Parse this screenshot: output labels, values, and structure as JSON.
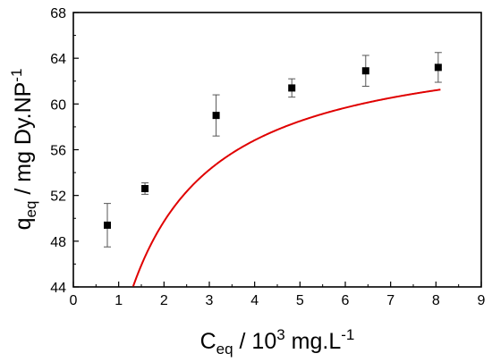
{
  "chart_data": {
    "type": "scatter",
    "xlabel": {
      "base": "C",
      "sub": "eq",
      "text": " / 10",
      "sup": "3",
      "text2": " mg.L",
      "sup2": "-1"
    },
    "ylabel": {
      "base": "q",
      "sub": "eq",
      "text": " / mg Dy.NP",
      "sup": "-1"
    },
    "xlim": [
      0,
      9
    ],
    "ylim": [
      44,
      68
    ],
    "x_ticks": [
      "0",
      "1",
      "2",
      "3",
      "4",
      "5",
      "6",
      "7",
      "8",
      "9"
    ],
    "y_ticks": [
      "44",
      "48",
      "52",
      "56",
      "60",
      "64",
      "68"
    ],
    "points": [
      {
        "x": 0.75,
        "y": 49.4,
        "err": 1.9
      },
      {
        "x": 1.58,
        "y": 52.6,
        "err": 0.5
      },
      {
        "x": 3.15,
        "y": 59.0,
        "err": 1.8
      },
      {
        "x": 4.82,
        "y": 61.4,
        "err": 0.8
      },
      {
        "x": 6.45,
        "y": 62.9,
        "err": 1.35
      },
      {
        "x": 8.05,
        "y": 63.2,
        "err": 1.3
      }
    ],
    "fit": {
      "model": "langmuir",
      "qmax": 66.3,
      "K": 1.5,
      "color": "#e00000"
    },
    "marker_color": "#000000",
    "grid": false,
    "legend": false
  }
}
